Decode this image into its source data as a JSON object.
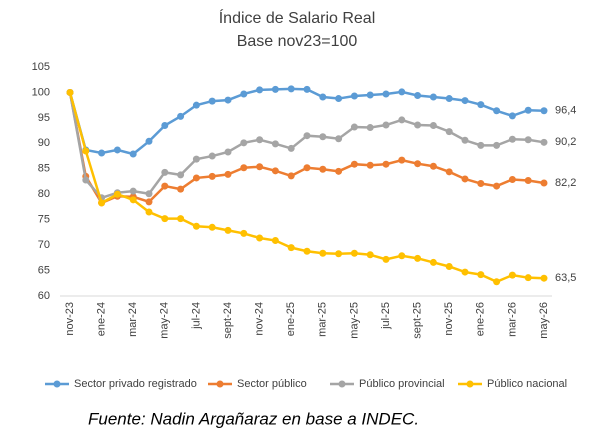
{
  "chart_data": {
    "type": "line",
    "title": "Índice de Salario Real",
    "subtitle": "Base nov23=100",
    "categories": [
      "nov-23",
      null,
      "ene-24",
      null,
      "mar-24",
      null,
      "may-24",
      null,
      "jul-24",
      null,
      "sept-24",
      null,
      "nov-24",
      null,
      "ene-25",
      null,
      "mar-25",
      null,
      "may-25",
      null,
      "jul-25",
      null,
      "sept-25",
      null,
      "nov-25",
      null,
      "ene-26",
      null,
      "mar-26",
      null,
      "may-26"
    ],
    "series": [
      {
        "name": "Sector privado registrado",
        "color": "#5b9bd5",
        "values": [
          100,
          88.7,
          88.1,
          88.7,
          87.9,
          90.4,
          93.5,
          95.3,
          97.5,
          98.3,
          98.5,
          99.7,
          100.5,
          100.6,
          100.7,
          100.6,
          99.1,
          98.8,
          99.3,
          99.5,
          99.7,
          100.1,
          99.4,
          99.1,
          98.8,
          98.4,
          97.6,
          96.4,
          95.4,
          96.5,
          96.4
        ],
        "value_labels": [
          null,
          null,
          null,
          null,
          null,
          null,
          null,
          null,
          null,
          null,
          null,
          null,
          null,
          null,
          null,
          null,
          null,
          null,
          null,
          null,
          null,
          null,
          null,
          null,
          null,
          null,
          null,
          null,
          null,
          null,
          "96,4"
        ]
      },
      {
        "name": "Sector público",
        "color": "#ed7d31",
        "values": [
          100,
          83.5,
          78.3,
          79.6,
          79.5,
          78.5,
          81.6,
          81.0,
          83.2,
          83.5,
          83.9,
          85.2,
          85.4,
          84.6,
          83.6,
          85.2,
          84.9,
          84.5,
          85.9,
          85.7,
          85.9,
          86.7,
          86.0,
          85.5,
          84.4,
          83.0,
          82.1,
          81.6,
          82.9,
          82.7,
          82.2
        ],
        "value_labels": [
          null,
          null,
          null,
          null,
          null,
          null,
          null,
          null,
          null,
          null,
          null,
          null,
          null,
          null,
          null,
          null,
          null,
          null,
          null,
          null,
          null,
          null,
          null,
          null,
          null,
          null,
          null,
          null,
          null,
          null,
          "82,2"
        ]
      },
      {
        "name": "Público provincial",
        "color": "#a5a5a5",
        "values": [
          100,
          82.8,
          79.3,
          80.3,
          80.6,
          80.1,
          84.3,
          83.8,
          86.9,
          87.5,
          88.3,
          90.1,
          90.7,
          89.9,
          89.0,
          91.5,
          91.3,
          90.9,
          93.2,
          93.1,
          93.6,
          94.6,
          93.6,
          93.5,
          92.3,
          90.6,
          89.6,
          89.6,
          90.8,
          90.7,
          90.2
        ],
        "value_labels": [
          null,
          null,
          null,
          null,
          null,
          null,
          null,
          null,
          null,
          null,
          null,
          null,
          null,
          null,
          null,
          null,
          null,
          null,
          null,
          null,
          null,
          null,
          null,
          null,
          null,
          null,
          null,
          null,
          null,
          null,
          "90,2"
        ]
      },
      {
        "name": "Público nacional",
        "color": "#ffc000",
        "values": [
          100,
          88.5,
          78.3,
          80.0,
          78.9,
          76.5,
          75.2,
          75.2,
          73.7,
          73.5,
          72.9,
          72.3,
          71.4,
          70.9,
          69.5,
          68.8,
          68.4,
          68.3,
          68.4,
          68.1,
          67.2,
          67.9,
          67.4,
          66.6,
          65.8,
          64.7,
          64.2,
          62.8,
          64.1,
          63.6,
          63.5
        ],
        "value_labels": [
          null,
          null,
          null,
          null,
          null,
          null,
          null,
          null,
          null,
          null,
          null,
          null,
          null,
          null,
          null,
          null,
          null,
          null,
          null,
          null,
          null,
          null,
          null,
          null,
          null,
          null,
          null,
          null,
          null,
          null,
          "63,5"
        ]
      }
    ],
    "ylim": [
      60,
      105
    ],
    "yticks": [
      60,
      65,
      70,
      75,
      80,
      85,
      90,
      95,
      100,
      105
    ],
    "grid": false,
    "legend": "bottom",
    "source": "Fuente: Nadin Argañaraz en base a INDEC."
  }
}
